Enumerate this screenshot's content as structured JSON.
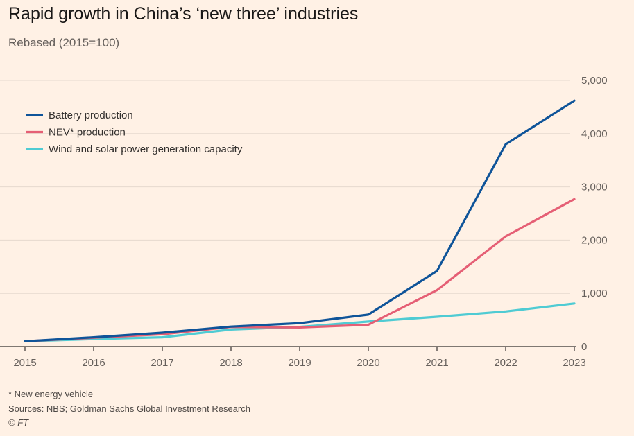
{
  "title": "Rapid growth in China’s ‘new three’ industries",
  "subtitle": "Rebased (2015=100)",
  "chart_data": {
    "type": "line",
    "title": "Rapid growth in China’s ‘new three’ industries",
    "subtitle": "Rebased (2015=100)",
    "x": [
      "2015",
      "2016",
      "2017",
      "2018",
      "2019",
      "2020",
      "2021",
      "2022",
      "2023"
    ],
    "y_ticks": [
      0,
      1000,
      2000,
      3000,
      4000,
      5000
    ],
    "y_tick_labels": [
      "0",
      "1,000",
      "2,000",
      "3,000",
      "4,000",
      "5,000"
    ],
    "ylim": [
      0,
      5000
    ],
    "y_axis_position": "right",
    "grid": true,
    "legend_position": "top-left",
    "series": [
      {
        "name": "Battery production",
        "color": "#0F5499",
        "values": [
          100,
          175,
          260,
          375,
          440,
          600,
          1420,
          3800,
          4620
        ]
      },
      {
        "name": "NEV* production",
        "color": "#E55F75",
        "values": [
          100,
          165,
          230,
          370,
          360,
          410,
          1060,
          2070,
          2770
        ]
      },
      {
        "name": "Wind and solar power generation capacity",
        "color": "#4FCBD3",
        "values": [
          100,
          140,
          175,
          320,
          370,
          470,
          560,
          660,
          810
        ]
      }
    ]
  },
  "footnote": "* New energy vehicle",
  "sources": "Sources: NBS; Goldman Sachs Global Investment Research",
  "copyright": "© FT"
}
